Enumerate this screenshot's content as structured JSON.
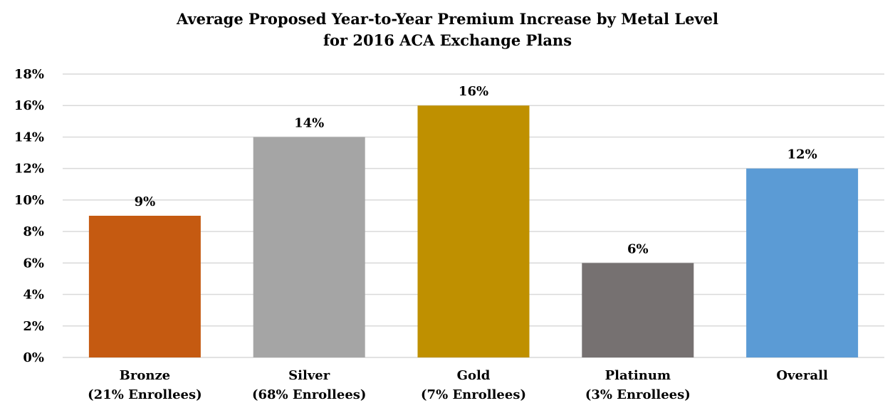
{
  "chart_data": {
    "type": "bar",
    "title_line1": "Average Proposed Year-to-Year Premium Increase by Metal Level",
    "title_line2": "for 2016 ACA Exchange Plans",
    "categories": [
      {
        "name": "Bronze",
        "sub": "(21% Enrollees)"
      },
      {
        "name": "Silver",
        "sub": "(68% Enrollees)"
      },
      {
        "name": "Gold",
        "sub": "(7% Enrollees)"
      },
      {
        "name": "Platinum",
        "sub": "(3% Enrollees)"
      },
      {
        "name": "Overall",
        "sub": ""
      }
    ],
    "values": [
      9,
      14,
      16,
      6,
      12
    ],
    "data_labels": [
      "9%",
      "14%",
      "16%",
      "6%",
      "12%"
    ],
    "bar_colors": [
      "#C55A11",
      "#A5A5A5",
      "#BF9000",
      "#767171",
      "#5B9BD5"
    ],
    "ylim": [
      0,
      18
    ],
    "yticks": [
      0,
      2,
      4,
      6,
      8,
      10,
      12,
      14,
      16,
      18
    ],
    "ytick_labels": [
      "0%",
      "2%",
      "4%",
      "6%",
      "8%",
      "10%",
      "12%",
      "14%",
      "16%",
      "18%"
    ],
    "grid": true,
    "gridline_color": "#D9D9D9"
  }
}
